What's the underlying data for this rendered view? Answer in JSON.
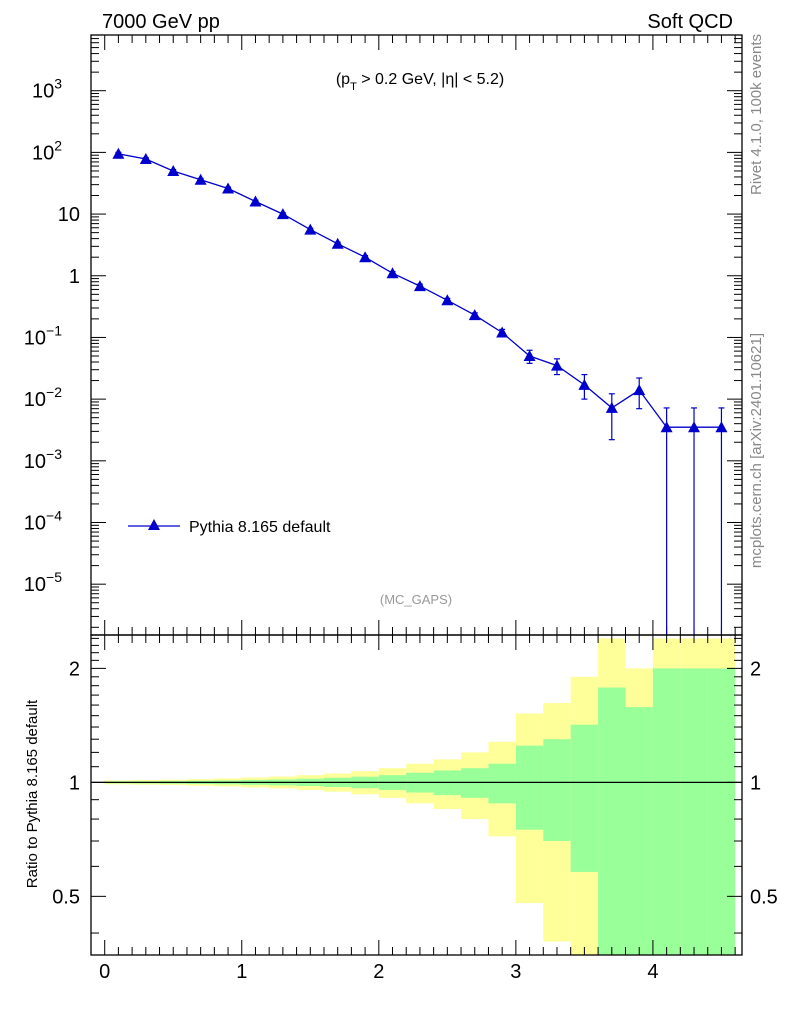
{
  "header": {
    "left_title": "7000 GeV pp",
    "right_title": "Soft QCD"
  },
  "side_labels": {
    "upper": "Rivet 4.1.0,  100k events",
    "lower": "mcplots.cern.ch [arXiv:2401.10621]"
  },
  "chart_data": [
    {
      "type": "line",
      "panel": "main",
      "annotation": "(p_T > 0.2 GeV, |η| < 5.2)",
      "watermark": "(MC_GAPS)",
      "yscale": "log",
      "xlim": [
        -0.1,
        4.65
      ],
      "ylim": [
        1.5e-06,
        8000
      ],
      "legend_position": "lower-left",
      "y_tick_labels": [
        "10^3",
        "10^2",
        "10",
        "1",
        "10^-1",
        "10^-2",
        "10^-3",
        "10^-4",
        "10^-5"
      ],
      "color": "#0000cc",
      "series": [
        {
          "name": "Pythia 8.165 default",
          "marker": "triangle",
          "x": [
            0.1,
            0.3,
            0.5,
            0.7,
            0.9,
            1.1,
            1.3,
            1.5,
            1.7,
            1.9,
            2.1,
            2.3,
            2.5,
            2.7,
            2.9,
            3.1,
            3.3,
            3.5,
            3.7,
            3.9,
            4.1,
            4.3,
            4.5
          ],
          "y": [
            95,
            78,
            50,
            36,
            26,
            16,
            10,
            5.6,
            3.3,
            2.0,
            1.1,
            0.68,
            0.4,
            0.23,
            0.12,
            0.05,
            0.035,
            0.017,
            0.0072,
            0.014,
            0.0035,
            0.0035,
            0.0035
          ],
          "err_low": [
            5,
            4,
            2.5,
            1.8,
            1.3,
            0.8,
            0.5,
            0.3,
            0.2,
            0.12,
            0.07,
            0.05,
            0.03,
            0.02,
            0.015,
            0.012,
            0.01,
            0.007,
            0.005,
            0.007,
            0.0035,
            0.0035,
            0.0035
          ],
          "err_high": [
            5,
            4,
            2.5,
            1.8,
            1.3,
            0.8,
            0.5,
            0.3,
            0.2,
            0.12,
            0.07,
            0.05,
            0.03,
            0.02,
            0.015,
            0.012,
            0.01,
            0.008,
            0.005,
            0.008,
            0.0037,
            0.0037,
            0.0037
          ]
        }
      ]
    },
    {
      "type": "area",
      "panel": "ratio",
      "ylabel": "Ratio to Pythia 8.165 default",
      "yscale": "log",
      "xlim": [
        -0.1,
        4.65
      ],
      "ylim": [
        0.35,
        2.45
      ],
      "y_ticks": [
        0.5,
        1,
        2
      ],
      "x_ticks": [
        0,
        1,
        2,
        3,
        4
      ],
      "reference_line": 1,
      "bin_edges": [
        0.0,
        0.2,
        0.4,
        0.6,
        0.8,
        1.0,
        1.2,
        1.4,
        1.6,
        1.8,
        2.0,
        2.2,
        2.4,
        2.6,
        2.8,
        3.0,
        3.2,
        3.4,
        3.6,
        3.8,
        4.0,
        4.2,
        4.4,
        4.6
      ],
      "bands": [
        {
          "name": "1-sigma",
          "color": "#99ff99",
          "upper": [
            1.006,
            1.007,
            1.008,
            1.01,
            1.012,
            1.015,
            1.018,
            1.022,
            1.028,
            1.035,
            1.045,
            1.06,
            1.075,
            1.09,
            1.12,
            1.25,
            1.3,
            1.42,
            1.78,
            1.58,
            2.0,
            2.0,
            2.0
          ],
          "lower": [
            0.994,
            0.993,
            0.992,
            0.99,
            0.988,
            0.985,
            0.982,
            0.978,
            0.972,
            0.965,
            0.955,
            0.94,
            0.925,
            0.91,
            0.88,
            0.75,
            0.7,
            0.58,
            0.3,
            0.3,
            0.3,
            0.3,
            0.3
          ]
        },
        {
          "name": "2-sigma",
          "color": "#ffff99",
          "upper": [
            1.012,
            1.014,
            1.016,
            1.02,
            1.024,
            1.03,
            1.036,
            1.045,
            1.055,
            1.07,
            1.09,
            1.12,
            1.15,
            1.2,
            1.28,
            1.52,
            1.62,
            1.9,
            2.4,
            2.0,
            2.4,
            2.4,
            2.4
          ],
          "lower": [
            0.988,
            0.986,
            0.984,
            0.98,
            0.976,
            0.97,
            0.964,
            0.955,
            0.945,
            0.93,
            0.91,
            0.88,
            0.85,
            0.8,
            0.72,
            0.48,
            0.38,
            0.3,
            0.3,
            0.3,
            0.3,
            0.3,
            0.3
          ]
        }
      ]
    }
  ]
}
